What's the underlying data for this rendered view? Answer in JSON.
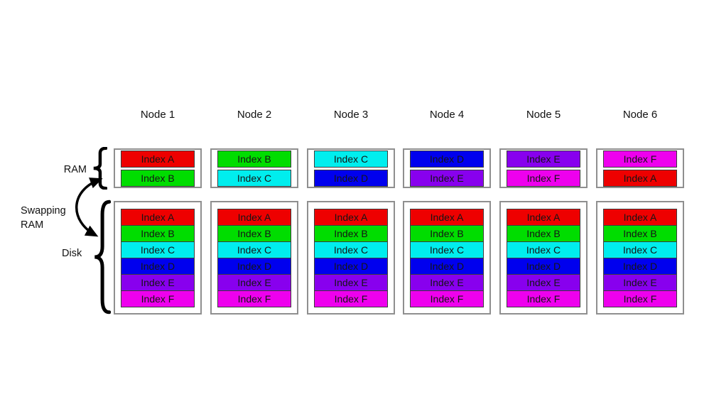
{
  "diagram_labels": {
    "ram": "RAM",
    "swapping_line1": "Swapping",
    "swapping_line2": "RAM",
    "disk": "Disk"
  },
  "indices": {
    "A": {
      "label": "Index A",
      "color": "#ee0000"
    },
    "B": {
      "label": "Index B",
      "color": "#00dd00"
    },
    "C": {
      "label": "Index C",
      "color": "#00eeee"
    },
    "D": {
      "label": "Index D",
      "color": "#0000ee"
    },
    "E": {
      "label": "Index E",
      "color": "#8800ee"
    },
    "F": {
      "label": "Index F",
      "color": "#ee00ee"
    }
  },
  "nodes": [
    {
      "title": "Node 1",
      "ram": [
        "A",
        "B"
      ],
      "disk": [
        "A",
        "B",
        "C",
        "D",
        "E",
        "F"
      ]
    },
    {
      "title": "Node 2",
      "ram": [
        "B",
        "C"
      ],
      "disk": [
        "A",
        "B",
        "C",
        "D",
        "E",
        "F"
      ]
    },
    {
      "title": "Node 3",
      "ram": [
        "C",
        "D"
      ],
      "disk": [
        "A",
        "B",
        "C",
        "D",
        "E",
        "F"
      ]
    },
    {
      "title": "Node 4",
      "ram": [
        "D",
        "E"
      ],
      "disk": [
        "A",
        "B",
        "C",
        "D",
        "E",
        "F"
      ]
    },
    {
      "title": "Node 5",
      "ram": [
        "E",
        "F"
      ],
      "disk": [
        "A",
        "B",
        "C",
        "D",
        "E",
        "F"
      ]
    },
    {
      "title": "Node 6",
      "ram": [
        "F",
        "A"
      ],
      "disk": [
        "A",
        "B",
        "C",
        "D",
        "E",
        "F"
      ]
    }
  ]
}
